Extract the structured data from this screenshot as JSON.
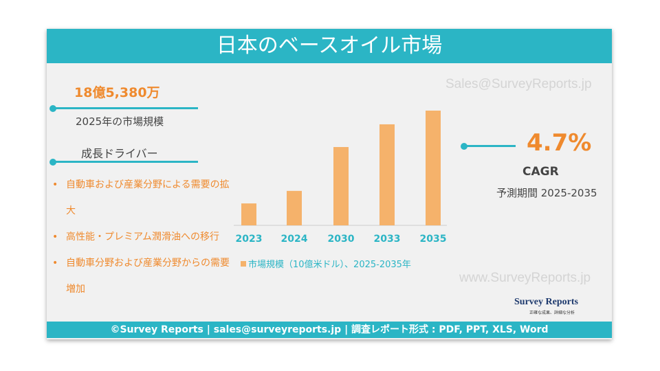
{
  "header": {
    "title": "日本のベースオイル市場"
  },
  "watermarks": [
    "Sales@SurveyReports.jp",
    "www.SurveyReports.jp"
  ],
  "market": {
    "value": "18億5,380万",
    "label": "2025年の市場規模"
  },
  "drivers": {
    "title": "成長ドライバー",
    "items": [
      "自動車および産業分野による需要の拡大",
      "高性能・プレミアム潤滑油への移行",
      "自動車分野および産業分野からの需要増加"
    ]
  },
  "chart_data": {
    "type": "bar",
    "categories": [
      "2023",
      "2024",
      "2030",
      "2033",
      "2035"
    ],
    "series": [
      {
        "name": "市場規模（10億米ドル）、2025-2035年",
        "color": "#f5b26b",
        "values": [
          0.56,
          0.88,
          2.0,
          2.58,
          2.93
        ]
      }
    ]
  },
  "cagr": {
    "value": "4.7%",
    "label": "CAGR",
    "period": "予測期間 2025-2035"
  },
  "logo": {
    "name": "Survey Reports",
    "tagline": "正確な成果、詳細な分析"
  },
  "footer": "©Survey Reports | sales@surveyreports.jp |  調査レポート形式 : PDF, PPT, XLS, Word"
}
